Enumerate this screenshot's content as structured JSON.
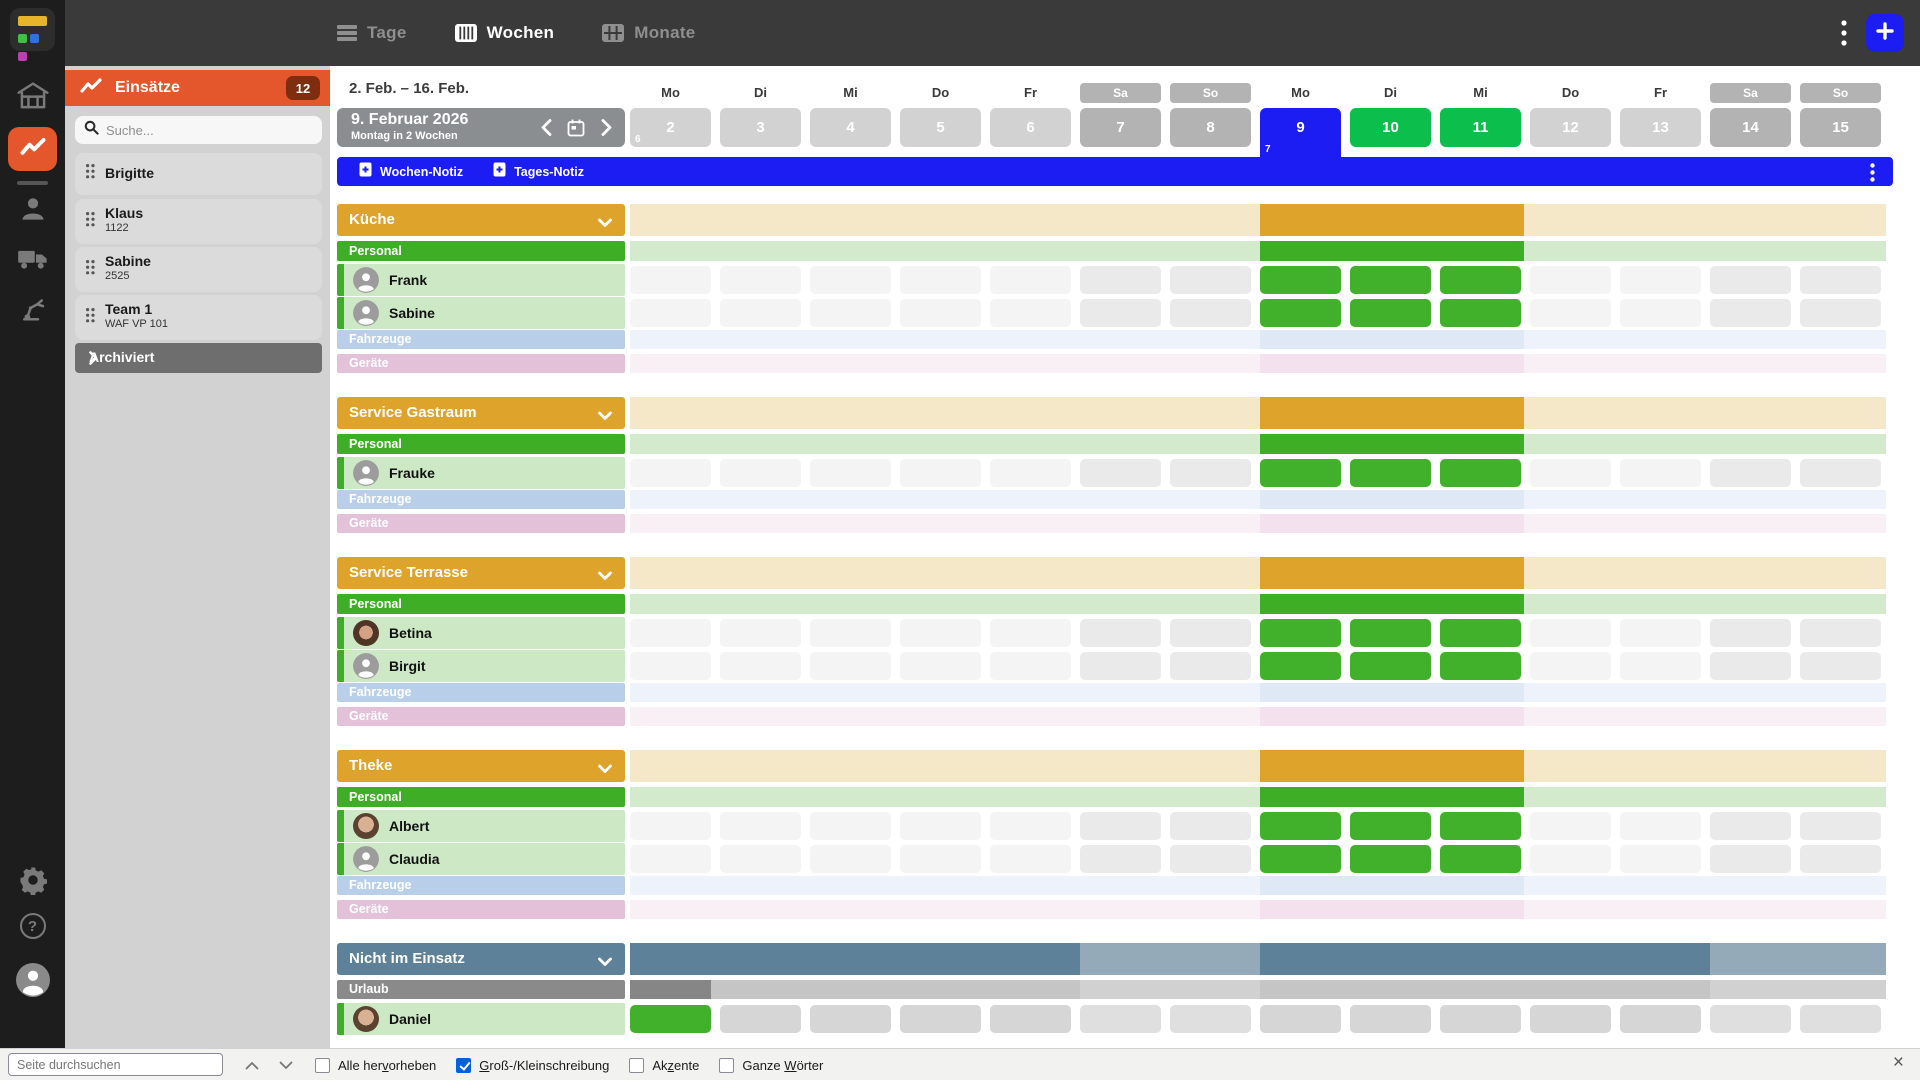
{
  "colors": {
    "blue": "#1b1df2",
    "date_green": "#0cbe4c",
    "cell_green": "#41b02a",
    "gold": "#dda32a",
    "gold_light": "#f5e8c9",
    "green": "#3fae27",
    "green_light": "#d4eacd",
    "member_bg": "#cce8c5",
    "blue_label": "#b9cfe9",
    "blue_light": "#eef3fb",
    "blue_hi": "#dfe8f5",
    "pink_label": "#e3c1d9",
    "pink_light": "#f9f0f6",
    "pink_hi": "#f3e2ed",
    "slate": "#5d8198",
    "slate_light": "#94aab8",
    "urlaub_label": "#8a8a8a",
    "urlaub_week": "#c5c5c5",
    "urlaub_weekend": "#d1d1d1",
    "urlaub_dark": "#868686",
    "cell_weekday": "#f4f4f4",
    "cell_weekend": "#eaeaea",
    "cell_gray": "#d6d6d6",
    "cell_gray_weekend": "#dfdfdf",
    "date_weekday": "#d2d2d2",
    "date_weekend": "#b3b3b3",
    "orange": "#e4562b"
  },
  "topbar": {
    "tabs": [
      {
        "label": "Tage",
        "icon": "days-icon",
        "active": false
      },
      {
        "label": "Wochen",
        "icon": "weeks-icon",
        "active": true
      },
      {
        "label": "Monate",
        "icon": "months-icon",
        "active": false
      }
    ]
  },
  "sidebar": {
    "title": "Einsätze",
    "count": "12",
    "search_placeholder": "Suche...",
    "items": [
      {
        "name": "Brigitte",
        "sub": ""
      },
      {
        "name": "Klaus",
        "sub": "1122"
      },
      {
        "name": "Sabine",
        "sub": "2525"
      },
      {
        "name": "Team 1",
        "sub": "WAF VP 101"
      }
    ],
    "archived_label": "Archiviert"
  },
  "calendar": {
    "range_label": "2. Feb. – 16. Feb.",
    "nav": {
      "title": "9. Februar 2026",
      "subtitle": "Montag in 2 Wochen"
    },
    "notes": {
      "week_label": "Wochen-Notiz",
      "day_label": "Tages-Notiz"
    },
    "day_headers": [
      {
        "dow": "Mo",
        "date": "2",
        "week_no": "6"
      },
      {
        "dow": "Di",
        "date": "3"
      },
      {
        "dow": "Mi",
        "date": "4"
      },
      {
        "dow": "Do",
        "date": "5"
      },
      {
        "dow": "Fr",
        "date": "6"
      },
      {
        "dow": "Sa",
        "date": "7",
        "weekend": true
      },
      {
        "dow": "So",
        "date": "8",
        "weekend": true
      },
      {
        "dow": "Mo",
        "date": "9",
        "selected": true,
        "week_no": "7"
      },
      {
        "dow": "Di",
        "date": "10",
        "event": true
      },
      {
        "dow": "Mi",
        "date": "11",
        "event": true
      },
      {
        "dow": "Do",
        "date": "12"
      },
      {
        "dow": "Fr",
        "date": "13"
      },
      {
        "dow": "Sa",
        "date": "14",
        "weekend": true
      },
      {
        "dow": "So",
        "date": "15",
        "weekend": true
      }
    ],
    "sections": [
      {
        "title": "Küche",
        "style": "gold",
        "rows": [
          {
            "kind": "strip",
            "style": "personal",
            "label": "Personal"
          },
          {
            "kind": "member",
            "name": "Frank",
            "avatar": "generic",
            "cells": [
              "E",
              "E",
              "E",
              "E",
              "E",
              "W",
              "W",
              "A",
              "A",
              "A",
              "E",
              "E",
              "W",
              "W"
            ]
          },
          {
            "kind": "member",
            "name": "Sabine",
            "avatar": "generic",
            "cells": [
              "E",
              "E",
              "E",
              "E",
              "E",
              "W",
              "W",
              "A",
              "A",
              "A",
              "E",
              "E",
              "W",
              "W"
            ]
          },
          {
            "kind": "strip",
            "style": "fahrzeuge",
            "label": "Fahrzeuge"
          },
          {
            "kind": "strip",
            "style": "geraete",
            "label": "Geräte"
          }
        ]
      },
      {
        "title": "Service Gastraum",
        "style": "gold",
        "rows": [
          {
            "kind": "strip",
            "style": "personal",
            "label": "Personal"
          },
          {
            "kind": "member",
            "name": "Frauke",
            "avatar": "generic",
            "cells": [
              "E",
              "E",
              "E",
              "E",
              "E",
              "W",
              "W",
              "A",
              "A",
              "A",
              "E",
              "E",
              "W",
              "W"
            ]
          },
          {
            "kind": "strip",
            "style": "fahrzeuge",
            "label": "Fahrzeuge"
          },
          {
            "kind": "strip",
            "style": "geraete",
            "label": "Geräte"
          }
        ]
      },
      {
        "title": "Service Terrasse",
        "style": "gold",
        "rows": [
          {
            "kind": "strip",
            "style": "personal",
            "label": "Personal"
          },
          {
            "kind": "member",
            "name": "Betina",
            "avatar": "photo-w",
            "cells": [
              "E",
              "E",
              "E",
              "E",
              "E",
              "W",
              "W",
              "A",
              "A",
              "A",
              "E",
              "E",
              "W",
              "W"
            ]
          },
          {
            "kind": "member",
            "name": "Birgit",
            "avatar": "generic",
            "cells": [
              "E",
              "E",
              "E",
              "E",
              "E",
              "W",
              "W",
              "A",
              "A",
              "A",
              "E",
              "E",
              "W",
              "W"
            ]
          },
          {
            "kind": "strip",
            "style": "fahrzeuge",
            "label": "Fahrzeuge"
          },
          {
            "kind": "strip",
            "style": "geraete",
            "label": "Geräte"
          }
        ]
      },
      {
        "title": "Theke",
        "style": "gold",
        "rows": [
          {
            "kind": "strip",
            "style": "personal",
            "label": "Personal"
          },
          {
            "kind": "member",
            "name": "Albert",
            "avatar": "photo-m",
            "cells": [
              "E",
              "E",
              "E",
              "E",
              "E",
              "W",
              "W",
              "A",
              "A",
              "A",
              "E",
              "E",
              "W",
              "W"
            ]
          },
          {
            "kind": "member",
            "name": "Claudia",
            "avatar": "generic",
            "cells": [
              "E",
              "E",
              "E",
              "E",
              "E",
              "W",
              "W",
              "A",
              "A",
              "A",
              "E",
              "E",
              "W",
              "W"
            ]
          },
          {
            "kind": "strip",
            "style": "fahrzeuge",
            "label": "Fahrzeuge"
          },
          {
            "kind": "strip",
            "style": "geraete",
            "label": "Geräte"
          }
        ]
      },
      {
        "title": "Nicht im Einsatz",
        "style": "slate",
        "rows": [
          {
            "kind": "strip",
            "style": "urlaub",
            "label": "Urlaub",
            "dark_day": 0
          },
          {
            "kind": "member",
            "name": "Daniel",
            "avatar": "photo-m",
            "cells": [
              "A",
              "G",
              "G",
              "G",
              "G",
              "Gw",
              "Gw",
              "G",
              "G",
              "G",
              "G",
              "G",
              "Gw",
              "Gw"
            ]
          }
        ]
      }
    ]
  },
  "find_bar": {
    "placeholder": "Seite durchsuchen",
    "checkboxes": [
      {
        "label": "Alle hervorheben",
        "checked": false,
        "accesskey": "v"
      },
      {
        "label": "Groß-/Kleinschreibung",
        "checked": true,
        "accesskey": "G"
      },
      {
        "label": "Akzente",
        "checked": false,
        "accesskey": "z"
      },
      {
        "label": "Ganze Wörter",
        "checked": false,
        "accesskey": "W"
      }
    ]
  }
}
